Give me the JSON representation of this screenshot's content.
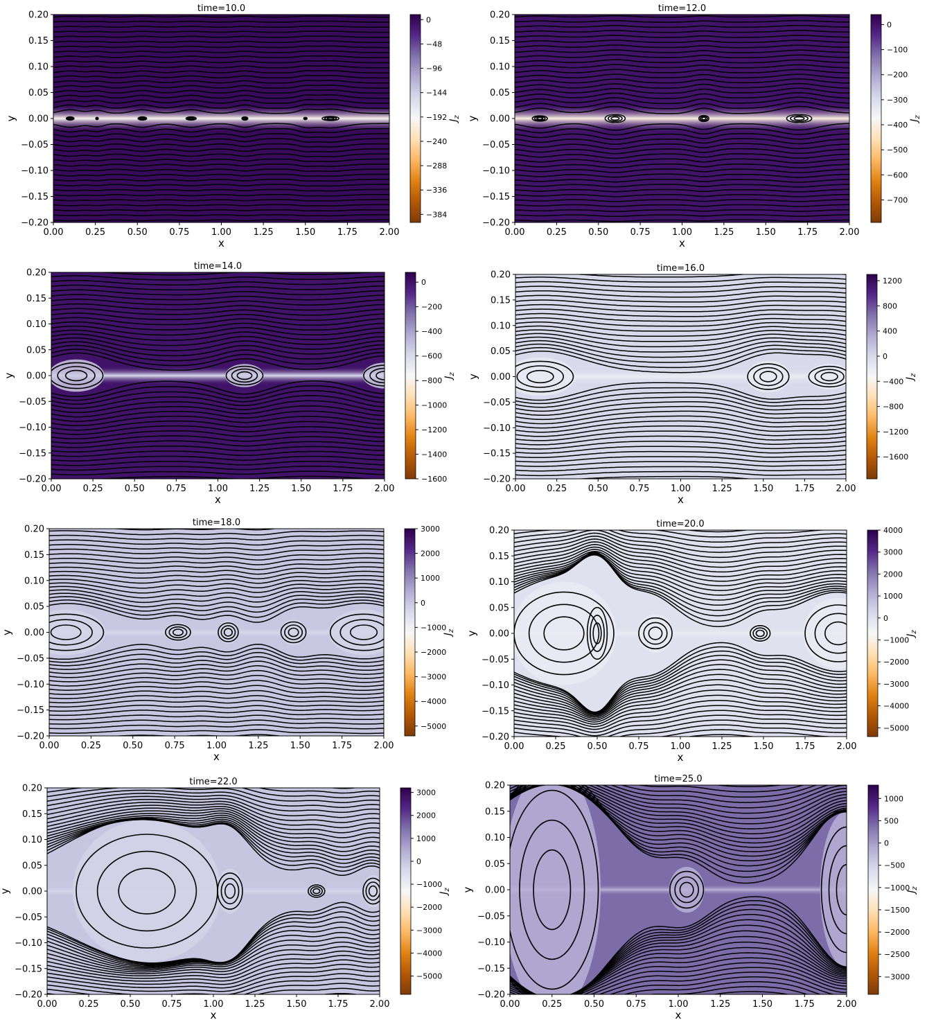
{
  "colormap": {
    "name": "PuOr",
    "stops": [
      "#7f3b08",
      "#b35806",
      "#e08214",
      "#fdb863",
      "#fee0b6",
      "#f7f7f7",
      "#d8daeb",
      "#b2abd2",
      "#8073ac",
      "#542788",
      "#2d004b"
    ]
  },
  "line_color": "#000000",
  "chart_data": [
    {
      "type": "heatmap",
      "title": "time=10.0",
      "xlabel": "x",
      "ylabel": "y",
      "cbar_label": "J_z",
      "xlim": [
        0,
        2
      ],
      "ylim": [
        -0.2,
        0.2
      ],
      "xticks": [
        "0.00",
        "0.25",
        "0.50",
        "0.75",
        "1.00",
        "1.25",
        "1.50",
        "1.75",
        "2.00"
      ],
      "yticks": [
        "0.20",
        "0.15",
        "0.10",
        "0.05",
        "0.00",
        "−0.05",
        "−0.10",
        "−0.15",
        "−0.20"
      ],
      "cbar_ticks": [
        "0",
        "−48",
        "−96",
        "−144",
        "−192",
        "−240",
        "−288",
        "−336",
        "−384"
      ],
      "cbar_range": [
        -400,
        10
      ],
      "bg": 0,
      "sheet": -200,
      "sheet_halfwidth": 0.012,
      "islands": [
        [
          0.1,
          0.045,
          0.003
        ],
        [
          0.26,
          0.015,
          0.002
        ],
        [
          0.53,
          0.05,
          0.003
        ],
        [
          0.82,
          0.06,
          0.003
        ],
        [
          1.14,
          0.035,
          0.003
        ],
        [
          1.5,
          0.02,
          0.002
        ],
        [
          1.65,
          0.1,
          0.004
        ]
      ],
      "warp": 0.0
    },
    {
      "type": "heatmap",
      "title": "time=12.0",
      "xlabel": "x",
      "ylabel": "y",
      "cbar_label": "J_z",
      "xlim": [
        0,
        2
      ],
      "ylim": [
        -0.2,
        0.2
      ],
      "xticks": [
        "0.00",
        "0.25",
        "0.50",
        "0.75",
        "1.00",
        "1.25",
        "1.50",
        "1.75",
        "2.00"
      ],
      "yticks": [
        "0.20",
        "0.15",
        "0.10",
        "0.05",
        "0.00",
        "−0.05",
        "−0.10",
        "−0.15",
        "−0.20"
      ],
      "cbar_ticks": [
        "0",
        "−100",
        "−200",
        "−300",
        "−400",
        "−500",
        "−600",
        "−700"
      ],
      "cbar_range": [
        -790,
        40
      ],
      "bg": 0,
      "sheet": -400,
      "sheet_halfwidth": 0.012,
      "islands": [
        [
          0.15,
          0.09,
          0.005
        ],
        [
          0.6,
          0.12,
          0.008
        ],
        [
          1.13,
          0.06,
          0.006
        ],
        [
          1.7,
          0.15,
          0.008
        ]
      ],
      "warp": 0.02
    },
    {
      "type": "heatmap",
      "title": "time=14.0",
      "xlabel": "x",
      "ylabel": "y",
      "cbar_label": "J_z",
      "xlim": [
        0,
        2
      ],
      "ylim": [
        -0.2,
        0.2
      ],
      "xticks": [
        "0.00",
        "0.25",
        "0.50",
        "0.75",
        "1.00",
        "1.25",
        "1.50",
        "1.75",
        "2.00"
      ],
      "yticks": [
        "0.20",
        "0.15",
        "0.10",
        "0.05",
        "0.00",
        "−0.05",
        "−0.10",
        "−0.15",
        "−0.20"
      ],
      "cbar_ticks": [
        "0",
        "−200",
        "−400",
        "−600",
        "−800",
        "−1000",
        "−1200",
        "−1400",
        "−1600"
      ],
      "cbar_range": [
        -1600,
        80
      ],
      "bg": 0,
      "sheet": -600,
      "sheet_halfwidth": 0.008,
      "islands": [
        [
          0.15,
          0.32,
          0.025
        ],
        [
          1.16,
          0.22,
          0.018
        ],
        [
          2.0,
          0.25,
          0.02
        ]
      ],
      "warp": 0.05
    },
    {
      "type": "heatmap",
      "title": "time=16.0",
      "xlabel": "x",
      "ylabel": "y",
      "cbar_label": "J_z",
      "xlim": [
        0,
        2
      ],
      "ylim": [
        -0.2,
        0.2
      ],
      "xticks": [
        "0.00",
        "0.25",
        "0.50",
        "0.75",
        "1.00",
        "1.25",
        "1.50",
        "1.75",
        "2.00"
      ],
      "yticks": [
        "0.20",
        "0.15",
        "0.10",
        "0.05",
        "0.00",
        "−0.05",
        "−0.10",
        "−0.15",
        "−0.20"
      ],
      "cbar_ticks": [
        "1200",
        "800",
        "400",
        "0",
        "−400",
        "−800",
        "−1200",
        "−1600"
      ],
      "cbar_range": [
        -1950,
        1300
      ],
      "bg": 0,
      "sheet": -200,
      "sheet_halfwidth": 0.008,
      "islands": [
        [
          0.15,
          0.4,
          0.03
        ],
        [
          1.53,
          0.25,
          0.025
        ],
        [
          1.9,
          0.25,
          0.02
        ]
      ],
      "warp": 0.06
    },
    {
      "type": "heatmap",
      "title": "time=18.0",
      "xlabel": "x",
      "ylabel": "y",
      "cbar_label": "J_z",
      "xlim": [
        0,
        2
      ],
      "ylim": [
        -0.2,
        0.2
      ],
      "xticks": [
        "0.00",
        "0.25",
        "0.50",
        "0.75",
        "1.00",
        "1.25",
        "1.50",
        "1.75",
        "2.00"
      ],
      "yticks": [
        "0.20",
        "0.15",
        "0.10",
        "0.05",
        "0.00",
        "−0.05",
        "−0.10",
        "−0.15",
        "−0.20"
      ],
      "cbar_ticks": [
        "3000",
        "2000",
        "1000",
        "0",
        "−1000",
        "−2000",
        "−3000",
        "−4000",
        "−5000"
      ],
      "cbar_range": [
        -5400,
        3000
      ],
      "bg": 0,
      "sheet": -300,
      "sheet_halfwidth": 0.006,
      "islands": [
        [
          0.1,
          0.45,
          0.035
        ],
        [
          0.77,
          0.15,
          0.015
        ],
        [
          1.07,
          0.12,
          0.018
        ],
        [
          1.46,
          0.15,
          0.02
        ],
        [
          1.88,
          0.4,
          0.035
        ]
      ],
      "warp": 0.07
    },
    {
      "type": "heatmap",
      "title": "time=20.0",
      "xlabel": "x",
      "ylabel": "y",
      "cbar_label": "J_z",
      "xlim": [
        0,
        2
      ],
      "ylim": [
        -0.2,
        0.2
      ],
      "xticks": [
        "0.00",
        "0.25",
        "0.50",
        "0.75",
        "1.00",
        "1.25",
        "1.50",
        "1.75",
        "2.00"
      ],
      "yticks": [
        "0.20",
        "0.15",
        "0.10",
        "0.05",
        "0.00",
        "−0.05",
        "−0.10",
        "−0.15",
        "−0.20"
      ],
      "cbar_ticks": [
        "4000",
        "3000",
        "2000",
        "1000",
        "0",
        "−1000",
        "−2000",
        "−3000",
        "−4000",
        "−5000"
      ],
      "cbar_range": [
        -5400,
        4000
      ],
      "bg": 0,
      "sheet": -300,
      "sheet_halfwidth": 0.006,
      "islands": [
        [
          0.3,
          0.6,
          0.08
        ],
        [
          0.5,
          0.12,
          0.05
        ],
        [
          0.85,
          0.2,
          0.03
        ],
        [
          1.48,
          0.12,
          0.015
        ],
        [
          1.95,
          0.4,
          0.055
        ]
      ],
      "warp": 0.09
    },
    {
      "type": "heatmap",
      "title": "time=22.0",
      "xlabel": "x",
      "ylabel": "y",
      "cbar_label": "J_z",
      "xlim": [
        0,
        2
      ],
      "ylim": [
        -0.2,
        0.2
      ],
      "xticks": [
        "0.00",
        "0.25",
        "0.50",
        "0.75",
        "1.00",
        "1.25",
        "1.50",
        "1.75",
        "2.00"
      ],
      "yticks": [
        "0.20",
        "0.15",
        "0.10",
        "0.05",
        "0.00",
        "−0.05",
        "−0.10",
        "−0.15",
        "−0.20"
      ],
      "cbar_ticks": [
        "3000",
        "2000",
        "1000",
        "0",
        "−1000",
        "−2000",
        "−3000",
        "−4000",
        "−5000"
      ],
      "cbar_range": [
        -5800,
        3200
      ],
      "bg": 0,
      "sheet": -300,
      "sheet_halfwidth": 0.005,
      "islands": [
        [
          0.6,
          0.85,
          0.11
        ],
        [
          1.1,
          0.15,
          0.035
        ],
        [
          1.62,
          0.1,
          0.012
        ],
        [
          1.96,
          0.12,
          0.025
        ]
      ],
      "warp": 0.12
    },
    {
      "type": "heatmap",
      "title": "time=25.0",
      "xlabel": "x",
      "ylabel": "y",
      "cbar_label": "J_z",
      "xlim": [
        0,
        2
      ],
      "ylim": [
        -0.2,
        0.2
      ],
      "xticks": [
        "0.00",
        "0.25",
        "0.50",
        "0.75",
        "1.00",
        "1.25",
        "1.50",
        "1.75",
        "2.00"
      ],
      "yticks": [
        "0.20",
        "0.15",
        "0.10",
        "0.05",
        "0.00",
        "−0.05",
        "−0.10",
        "−0.15",
        "−0.20"
      ],
      "cbar_ticks": [
        "1000",
        "500",
        "0",
        "−500",
        "−1000",
        "−1500",
        "−2000",
        "−2500",
        "−3000"
      ],
      "cbar_range": [
        -3400,
        1300
      ],
      "bg": 400,
      "sheet": -200,
      "sheet_halfwidth": 0.005,
      "islands": [
        [
          0.25,
          0.55,
          0.19
        ],
        [
          1.05,
          0.2,
          0.035
        ],
        [
          2.0,
          0.3,
          0.12
        ]
      ],
      "warp": 0.15
    }
  ]
}
